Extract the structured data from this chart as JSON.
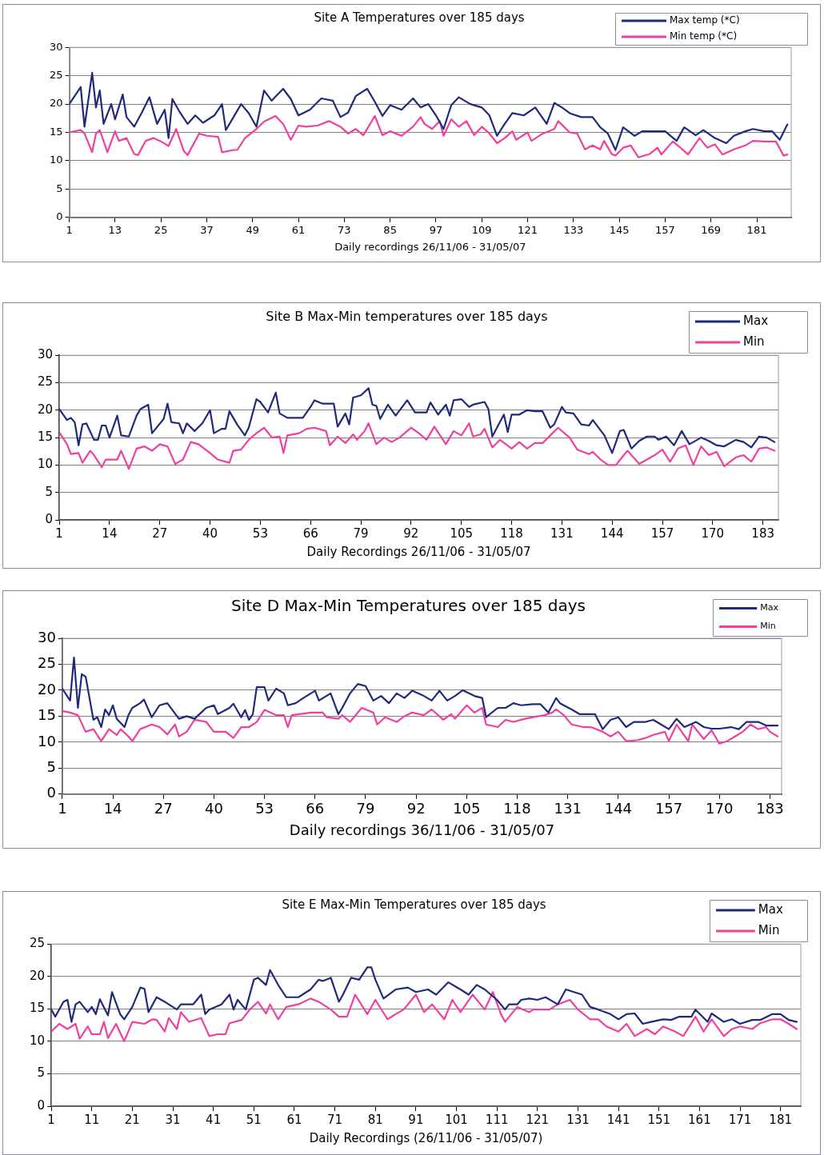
{
  "chart_data": [
    {
      "type": "line",
      "title": "Site A Temperatures over 185 days",
      "xlabel": "Daily recordings 26/11/06 - 31/05/07",
      "xlim": [
        1,
        190
      ],
      "xticks": [
        1,
        13,
        25,
        37,
        49,
        61,
        73,
        85,
        97,
        109,
        121,
        133,
        145,
        157,
        169,
        181
      ],
      "ylim": [
        0,
        30
      ],
      "yticks": [
        0,
        5,
        10,
        15,
        20,
        25,
        30
      ],
      "grid": "y",
      "legend": "top right",
      "marker": "none",
      "line_style": "solid",
      "series": [
        {
          "name": "Max temp (*C)",
          "color": "#1f2a7a",
          "x": [
            1,
            4,
            5,
            7,
            8,
            9,
            10,
            12,
            13,
            15,
            16,
            18,
            20,
            22,
            24,
            26,
            27,
            28,
            30,
            32,
            34,
            36,
            39,
            41,
            42,
            44,
            46,
            48,
            50,
            52,
            54,
            57,
            59,
            61,
            64,
            67,
            70,
            72,
            74,
            76,
            79,
            81,
            83,
            85,
            88,
            91,
            93,
            95,
            97,
            99,
            101,
            103,
            106,
            109,
            111,
            113,
            115,
            117,
            120,
            123,
            126,
            128,
            130,
            132,
            135,
            138,
            140,
            142,
            144,
            146,
            149,
            151,
            154,
            157,
            160,
            162,
            165,
            167,
            170,
            173,
            175,
            178,
            180,
            183,
            185,
            187,
            189
          ],
          "values": [
            20,
            23,
            16,
            25.5,
            19.4,
            22.4,
            16.5,
            20,
            17.3,
            21.7,
            17.7,
            16,
            18.5,
            21.2,
            16.5,
            19,
            14,
            20.9,
            18.5,
            16.5,
            18,
            16.7,
            18,
            20,
            15.4,
            17.7,
            20,
            18.4,
            16,
            22.4,
            20.6,
            22.7,
            20.9,
            18,
            19,
            21,
            20.6,
            17.7,
            18.5,
            21.4,
            22.7,
            20.4,
            17.9,
            19.8,
            19,
            21,
            19.4,
            20,
            18,
            15.6,
            19.8,
            21.2,
            20,
            19.4,
            18,
            14.4,
            16.5,
            18.4,
            18,
            19.4,
            16.5,
            20.2,
            19.4,
            18.4,
            17.7,
            17.7,
            15.9,
            14.8,
            11.9,
            15.9,
            14.4,
            15.2,
            15.2,
            15.2,
            13.5,
            15.9,
            14.5,
            15.4,
            14,
            13.1,
            14.4,
            15.2,
            15.6,
            15.2,
            15.2,
            13.7,
            16.4
          ]
        },
        {
          "name": "Min temp (*C)",
          "color": "#f0409e",
          "x": [
            1,
            4,
            5,
            7,
            8,
            9,
            11,
            13,
            14,
            16,
            18,
            19,
            21,
            23,
            25,
            27,
            29,
            31,
            32,
            35,
            37,
            40,
            41,
            44,
            45,
            47,
            50,
            52,
            55,
            57,
            59,
            61,
            63,
            66,
            69,
            72,
            74,
            76,
            78,
            81,
            83,
            85,
            88,
            91,
            93,
            94,
            96,
            98,
            99,
            101,
            103,
            105,
            107,
            109,
            111,
            113,
            115,
            117,
            118,
            121,
            122,
            125,
            128,
            129,
            132,
            134,
            136,
            138,
            140,
            141,
            143,
            144,
            146,
            148,
            150,
            153,
            155,
            156,
            159,
            161,
            163,
            166,
            168,
            170,
            172,
            175,
            178,
            180,
            183,
            186,
            188,
            189
          ],
          "values": [
            15,
            15.4,
            14.8,
            11.5,
            14.8,
            15.4,
            11.5,
            15.2,
            13.5,
            14,
            11.2,
            11,
            13.5,
            14,
            13.4,
            12.6,
            15.6,
            11.7,
            11,
            14.8,
            14.4,
            14.2,
            11.5,
            11.9,
            11.9,
            14,
            15.6,
            16.9,
            17.9,
            16.5,
            13.7,
            16.2,
            16,
            16.2,
            17,
            16,
            14.8,
            15.6,
            14.5,
            17.9,
            14.5,
            15.2,
            14.4,
            16,
            17.7,
            16.5,
            15.6,
            17,
            14.4,
            17.3,
            16,
            17,
            14.5,
            16,
            14.8,
            13.1,
            14,
            15.2,
            13.7,
            15,
            13.5,
            14.8,
            15.6,
            17,
            15,
            14.8,
            12,
            12.7,
            12,
            13.5,
            11.2,
            10.9,
            12.3,
            12.7,
            10.6,
            11.2,
            12.3,
            11.1,
            13.4,
            12.3,
            11.1,
            14,
            12.3,
            12.9,
            11.1,
            12,
            12.7,
            13.5,
            13.4,
            13.4,
            10.9,
            11.1
          ]
        }
      ]
    },
    {
      "type": "line",
      "title": "Site B Max-Min temperatures over 185 days",
      "xlabel": "Daily Recordings 26/11/06 - 31/05/07",
      "xlim": [
        1,
        187
      ],
      "xticks": [
        1,
        14,
        27,
        40,
        53,
        66,
        79,
        92,
        105,
        118,
        131,
        144,
        157,
        170,
        183
      ],
      "ylim": [
        0,
        30
      ],
      "yticks": [
        0,
        5,
        10,
        15,
        20,
        25,
        30
      ],
      "grid": "y",
      "legend": "top right",
      "marker": "none",
      "line_style": "solid",
      "series": [
        {
          "name": "Max",
          "color": "#1f2a7a",
          "x": [
            1,
            3,
            4,
            5,
            6,
            7,
            8,
            10,
            11,
            12,
            13,
            14,
            16,
            17,
            19,
            21,
            22,
            24,
            25,
            28,
            29,
            30,
            32,
            33,
            34,
            36,
            38,
            40,
            41,
            43,
            44,
            45,
            47,
            49,
            50,
            52,
            53,
            55,
            57,
            58,
            60,
            64,
            66,
            67,
            69,
            72,
            73,
            75,
            76,
            77,
            79,
            81,
            82,
            83,
            84,
            86,
            88,
            91,
            93,
            96,
            97,
            99,
            101,
            102,
            103,
            105,
            107,
            108,
            111,
            112,
            113,
            116,
            117,
            118,
            120,
            122,
            124,
            126,
            128,
            129,
            131,
            132,
            134,
            136,
            138,
            139,
            142,
            144,
            146,
            147,
            149,
            151,
            153,
            155,
            156,
            158,
            160,
            162,
            164,
            166,
            167,
            169,
            171,
            173,
            176,
            178,
            180,
            182,
            184,
            186
          ],
          "values": [
            20.2,
            18.2,
            18.6,
            17.8,
            13.6,
            17.4,
            17.6,
            14.6,
            14.6,
            17.2,
            17.2,
            15,
            19,
            15.4,
            15.2,
            19,
            20.2,
            21,
            15.8,
            18.4,
            21.2,
            17.8,
            17.6,
            15.8,
            17.6,
            16.2,
            17.6,
            20,
            15.8,
            16.6,
            16.6,
            19.8,
            17.4,
            15.4,
            16.8,
            22,
            21.5,
            19.6,
            23.2,
            19.4,
            18.6,
            18.6,
            20.6,
            21.8,
            21.2,
            21.2,
            17,
            19.4,
            17.4,
            22.3,
            22.7,
            24,
            21,
            20.8,
            18.4,
            21,
            19,
            21.8,
            19.6,
            19.6,
            21.4,
            19.2,
            21,
            19,
            21.8,
            22,
            20.6,
            21,
            21.5,
            20.2,
            15.2,
            19.2,
            16,
            19.2,
            19.2,
            20,
            19.8,
            19.8,
            16.8,
            17.4,
            20.6,
            19.6,
            19.4,
            17.4,
            17.2,
            18.2,
            15.4,
            12.2,
            16.2,
            16.4,
            13,
            14.4,
            15.2,
            15.2,
            14.6,
            15.2,
            13.6,
            16.2,
            13.8,
            14.6,
            15,
            14.4,
            13.6,
            13.4,
            14.6,
            14.2,
            13.2,
            15.2,
            15,
            14.2
          ]
        },
        {
          "name": "Min",
          "color": "#f0409e",
          "x": [
            1,
            3,
            4,
            6,
            7,
            9,
            10,
            12,
            13,
            16,
            17,
            19,
            21,
            23,
            25,
            27,
            29,
            31,
            33,
            35,
            37,
            40,
            42,
            45,
            46,
            48,
            50,
            52,
            54,
            56,
            58,
            59,
            60,
            63,
            65,
            67,
            70,
            71,
            73,
            75,
            77,
            78,
            80,
            81,
            83,
            85,
            87,
            89,
            92,
            94,
            96,
            98,
            101,
            103,
            105,
            107,
            108,
            110,
            111,
            113,
            115,
            118,
            120,
            122,
            124,
            126,
            128,
            130,
            133,
            135,
            138,
            139,
            141,
            143,
            145,
            147,
            148,
            151,
            152,
            155,
            157,
            159,
            161,
            163,
            165,
            167,
            169,
            171,
            173,
            176,
            178,
            180,
            182,
            184,
            186
          ],
          "values": [
            16,
            13.8,
            12,
            12.2,
            10.4,
            12.6,
            11.8,
            9.6,
            11,
            11,
            12.6,
            9.3,
            13,
            13.4,
            12.6,
            13.8,
            13.4,
            10.2,
            11,
            14.2,
            13.8,
            12.2,
            11,
            10.4,
            12.6,
            12.8,
            14.6,
            15.8,
            16.8,
            15,
            15.2,
            12.2,
            15.4,
            15.8,
            16.6,
            16.8,
            16.2,
            13.6,
            15.2,
            14,
            15.6,
            14.6,
            16.2,
            17.6,
            13.8,
            15,
            14.2,
            15,
            16.8,
            15.8,
            14.6,
            17,
            13.8,
            16.2,
            15.4,
            17.6,
            15.2,
            15.6,
            16.6,
            13.2,
            14.6,
            13,
            14.2,
            13,
            14,
            14,
            15.4,
            16.8,
            15,
            12.8,
            12,
            12.4,
            11,
            10,
            10,
            11.8,
            12.6,
            10.2,
            10.6,
            11.8,
            12.8,
            10.6,
            13,
            13.6,
            10,
            13.4,
            11.8,
            12.4,
            9.8,
            11.4,
            11.8,
            10.6,
            13,
            13.2,
            12.6
          ]
        }
      ]
    },
    {
      "type": "line",
      "title": "Site D Max-Min Temperatures over 185 days",
      "xlabel": "Daily recordings 36/11/06 - 31/05/07",
      "xlim": [
        1,
        186
      ],
      "xticks": [
        1,
        14,
        27,
        40,
        53,
        66,
        79,
        92,
        105,
        118,
        131,
        144,
        157,
        170,
        183
      ],
      "ylim": [
        0,
        30
      ],
      "yticks": [
        0,
        5,
        10,
        15,
        20,
        25,
        30
      ],
      "grid": "y",
      "legend": "top right",
      "marker": "none",
      "line_style": "solid",
      "series": [
        {
          "name": "Max",
          "color": "#1f2a7a",
          "x": [
            1,
            3,
            4,
            5,
            6,
            7,
            9,
            10,
            11,
            12,
            13,
            14,
            15,
            17,
            18,
            19,
            21,
            22,
            24,
            26,
            28,
            31,
            33,
            35,
            38,
            40,
            41,
            44,
            45,
            47,
            48,
            49,
            50,
            51,
            53,
            54,
            56,
            58,
            59,
            61,
            63,
            66,
            67,
            70,
            72,
            73,
            75,
            77,
            79,
            81,
            83,
            85,
            87,
            89,
            91,
            94,
            96,
            98,
            100,
            102,
            104,
            107,
            109,
            110,
            113,
            115,
            117,
            119,
            122,
            124,
            126,
            128,
            129,
            132,
            134,
            138,
            140,
            142,
            144,
            146,
            148,
            151,
            153,
            155,
            157,
            159,
            161,
            164,
            166,
            168,
            170,
            173,
            175,
            177,
            180,
            182,
            185
          ],
          "values": [
            20.3,
            18,
            26.3,
            16.6,
            23.1,
            22.6,
            14.3,
            14.8,
            12.9,
            16.3,
            15.2,
            17.1,
            14.5,
            12.9,
            15.2,
            16.6,
            17.5,
            18.2,
            14.8,
            17.1,
            17.5,
            14.5,
            15,
            14.5,
            16.6,
            17.1,
            15.4,
            16.6,
            17.4,
            14.8,
            16.2,
            14.3,
            15.4,
            20.6,
            20.6,
            18,
            20.3,
            19.4,
            17.1,
            17.5,
            18.5,
            19.9,
            18,
            19.4,
            15.4,
            16.6,
            19.4,
            21.2,
            20.8,
            18,
            18.9,
            17.5,
            19.4,
            18.5,
            19.9,
            18.9,
            18,
            19.9,
            18,
            18.9,
            20,
            18.9,
            18.5,
            14.8,
            16.6,
            16.6,
            17.5,
            17.1,
            17.3,
            17.3,
            15.7,
            18.5,
            17.5,
            16.3,
            15.4,
            15.4,
            12.5,
            14.3,
            14.8,
            12.9,
            13.9,
            13.9,
            14.3,
            13.4,
            12.5,
            14.5,
            12.9,
            13.9,
            12.9,
            12.6,
            12.6,
            12.9,
            12.5,
            13.9,
            13.9,
            13.2,
            13.2
          ]
        },
        {
          "name": "Min",
          "color": "#f0409e",
          "x": [
            1,
            3,
            5,
            7,
            9,
            11,
            13,
            15,
            16,
            18,
            19,
            21,
            24,
            26,
            28,
            30,
            31,
            33,
            35,
            38,
            40,
            43,
            45,
            47,
            49,
            51,
            53,
            56,
            58,
            59,
            60,
            62,
            65,
            68,
            69,
            72,
            73,
            75,
            78,
            81,
            82,
            84,
            87,
            89,
            91,
            94,
            96,
            99,
            101,
            102,
            105,
            107,
            109,
            110,
            113,
            115,
            117,
            120,
            122,
            125,
            127,
            128,
            130,
            132,
            135,
            137,
            140,
            142,
            144,
            146,
            149,
            151,
            153,
            156,
            157,
            159,
            162,
            163,
            166,
            168,
            170,
            172,
            174,
            176,
            178,
            180,
            182,
            183,
            185
          ],
          "values": [
            16,
            15.7,
            15.2,
            12,
            12.5,
            10.2,
            12.5,
            11.4,
            12.5,
            11.1,
            10.2,
            12.5,
            13.4,
            12.9,
            11.5,
            13.4,
            11.1,
            12,
            14.3,
            13.9,
            12,
            12,
            10.8,
            12.9,
            12.9,
            13.9,
            16.2,
            15.2,
            15.2,
            12.9,
            15.2,
            15.4,
            15.7,
            15.7,
            14.8,
            14.5,
            15.2,
            13.9,
            16.6,
            15.7,
            13.4,
            14.8,
            13.9,
            15,
            15.7,
            15.2,
            16.3,
            14.3,
            15.4,
            14.5,
            17.1,
            15.7,
            16.6,
            13.4,
            12.9,
            14.3,
            13.9,
            14.5,
            14.8,
            15.2,
            15.7,
            16.3,
            15.2,
            13.4,
            12.9,
            12.9,
            12,
            11.1,
            12,
            10.2,
            10.4,
            10.8,
            11.4,
            12,
            10.2,
            13.4,
            10.2,
            13.4,
            10.6,
            12.3,
            9.7,
            10.2,
            11.1,
            12,
            13.4,
            12.5,
            12.9,
            12,
            11.1
          ]
        }
      ]
    },
    {
      "type": "line",
      "title": "Site E Max-Min Temperatures over 185 days",
      "xlabel": "Daily Recordings (26/11/06 - 31/05/07)",
      "xlim": [
        1,
        186
      ],
      "xticks": [
        1,
        11,
        21,
        31,
        41,
        51,
        61,
        71,
        81,
        91,
        101,
        111,
        121,
        131,
        141,
        151,
        161,
        171,
        181
      ],
      "ylim": [
        0,
        25
      ],
      "yticks": [
        0,
        5,
        10,
        15,
        20,
        25
      ],
      "grid": "y",
      "legend": "top right",
      "marker": "none",
      "line_style": "solid",
      "series": [
        {
          "name": "Max",
          "color": "#1f2a7a",
          "x": [
            1,
            2,
            4,
            5,
            6,
            7,
            8,
            10,
            11,
            12,
            13,
            15,
            16,
            18,
            19,
            21,
            23,
            24,
            25,
            27,
            29,
            32,
            33,
            36,
            38,
            39,
            40,
            43,
            45,
            46,
            47,
            49,
            51,
            52,
            54,
            55,
            57,
            59,
            62,
            65,
            67,
            68,
            70,
            72,
            73,
            75,
            77,
            79,
            80,
            81,
            83,
            86,
            89,
            91,
            94,
            96,
            99,
            102,
            104,
            106,
            108,
            111,
            113,
            114,
            116,
            117,
            119,
            121,
            123,
            126,
            128,
            130,
            132,
            134,
            136,
            139,
            141,
            143,
            145,
            147,
            149,
            152,
            154,
            156,
            159,
            160,
            163,
            164,
            167,
            169,
            171,
            174,
            176,
            179,
            181,
            183,
            185
          ],
          "values": [
            14.9,
            13.8,
            16.1,
            16.4,
            13,
            15.7,
            16.1,
            14.5,
            15.3,
            14.2,
            16.5,
            14,
            17.6,
            14.2,
            13.4,
            15.3,
            18.3,
            18.1,
            14.5,
            16.8,
            16.1,
            14.9,
            15.7,
            15.7,
            17.2,
            14.2,
            14.9,
            15.7,
            17.2,
            14.9,
            16.4,
            14.9,
            19.5,
            19.8,
            18.7,
            21,
            18.7,
            16.8,
            16.8,
            18,
            19.5,
            19.3,
            19.8,
            16.1,
            17.2,
            19.8,
            19.5,
            21.4,
            21.4,
            19.5,
            16.6,
            18,
            18.3,
            17.6,
            18,
            17.2,
            19.1,
            18,
            17.2,
            18.7,
            18,
            16.4,
            14.9,
            15.7,
            15.7,
            16.4,
            16.6,
            16.4,
            16.8,
            15.7,
            18,
            17.6,
            17.2,
            15.3,
            14.9,
            14.2,
            13.4,
            14.2,
            14.3,
            12.7,
            13,
            13.4,
            13.3,
            13.8,
            13.8,
            14.9,
            13,
            14.3,
            13,
            13.4,
            12.7,
            13.3,
            13.3,
            14.2,
            14.2,
            13.3,
            13
          ]
        },
        {
          "name": "Min",
          "color": "#f0409e",
          "x": [
            1,
            3,
            5,
            7,
            8,
            10,
            11,
            13,
            14,
            15,
            17,
            19,
            21,
            24,
            26,
            27,
            29,
            30,
            32,
            33,
            35,
            38,
            40,
            42,
            44,
            45,
            48,
            50,
            52,
            54,
            55,
            57,
            59,
            62,
            65,
            67,
            70,
            72,
            74,
            76,
            79,
            81,
            84,
            86,
            88,
            91,
            93,
            95,
            98,
            100,
            102,
            105,
            108,
            110,
            112,
            113,
            116,
            119,
            120,
            124,
            126,
            129,
            131,
            134,
            136,
            138,
            141,
            143,
            145,
            148,
            150,
            152,
            155,
            157,
            160,
            162,
            164,
            167,
            169,
            171,
            174,
            176,
            179,
            181,
            183,
            185
          ],
          "values": [
            11.5,
            12.7,
            11.9,
            12.7,
            10.4,
            12.3,
            11.1,
            11.1,
            13,
            10.5,
            12.7,
            10,
            13,
            12.7,
            13.4,
            13.3,
            11.5,
            13.6,
            11.9,
            14.5,
            13,
            13.6,
            10.8,
            11.1,
            11.1,
            12.8,
            13.3,
            14.9,
            16.1,
            14.3,
            15.7,
            13.4,
            15.3,
            15.7,
            16.6,
            16.1,
            14.9,
            13.8,
            13.8,
            17.2,
            14.2,
            16.4,
            13.4,
            14.2,
            14.9,
            17.2,
            14.5,
            15.7,
            13.4,
            16.4,
            14.5,
            17.2,
            14.9,
            17.6,
            14.2,
            13,
            15.3,
            14.5,
            14.9,
            14.9,
            15.7,
            16.4,
            14.9,
            13.4,
            13.4,
            12.3,
            11.5,
            12.7,
            10.8,
            11.9,
            11.1,
            12.3,
            11.5,
            10.8,
            13.8,
            11.5,
            13.4,
            10.8,
            11.9,
            12.3,
            11.9,
            12.8,
            13.4,
            13.4,
            12.7,
            11.9
          ]
        }
      ]
    }
  ]
}
